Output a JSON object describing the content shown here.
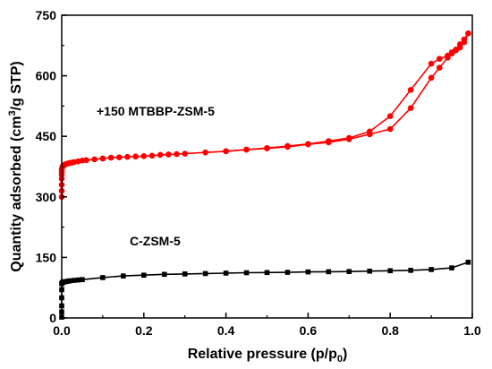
{
  "chart_data": {
    "type": "line",
    "xlabel": "Relative pressure (p/p",
    "xlabel_sub": "0",
    "xlabel_end": ")",
    "ylabel": "Quantity adsorbed (cm",
    "ylabel_sup": "3",
    "ylabel_end": "/g STP)",
    "xlim": [
      0,
      1.0
    ],
    "ylim": [
      0,
      750
    ],
    "xticks": [
      0.0,
      0.2,
      0.4,
      0.6,
      0.8,
      1.0
    ],
    "xtick_labels": [
      "0.0",
      "0.2",
      "0.4",
      "0.6",
      "0.8",
      "1.0"
    ],
    "yticks": [
      0,
      150,
      300,
      450,
      600,
      750
    ],
    "ytick_labels": [
      "0",
      "150",
      "300",
      "450",
      "600",
      "750"
    ],
    "grid": false,
    "annotations": [
      "+150 MTBBP-ZSM-5",
      "C-ZSM-5"
    ],
    "series": [
      {
        "color": "#ff0000",
        "marker": "circle",
        "branches": [
          {
            "x": [
              0.0,
              0.0,
              0.0,
              0.0,
              0.0,
              0.0,
              0.0,
              0.001,
              0.002,
              0.004,
              0.006,
              0.008,
              0.012,
              0.016,
              0.02,
              0.025,
              0.03,
              0.04,
              0.05,
              0.06,
              0.08,
              0.1,
              0.12,
              0.14,
              0.16,
              0.18,
              0.2,
              0.22,
              0.24,
              0.26,
              0.28,
              0.3,
              0.35,
              0.4,
              0.45,
              0.5,
              0.55,
              0.6,
              0.65,
              0.7,
              0.75,
              0.8,
              0.85,
              0.9,
              0.92,
              0.94,
              0.95,
              0.96,
              0.97,
              0.98,
              0.99
            ],
            "y": [
              300,
              315,
              330,
              345,
              355,
              362,
              368,
              372,
              375,
              377,
              379,
              380,
              382,
              383,
              384,
              385,
              386,
              388,
              390,
              391,
              393,
              395,
              397,
              398,
              399,
              400,
              401,
              402,
              404,
              405,
              406,
              407,
              410,
              413,
              417,
              420,
              424,
              430,
              435,
              443,
              455,
              468,
              520,
              595,
              620,
              645,
              655,
              663,
              670,
              683,
              705
            ]
          },
          {
            "x": [
              0.99,
              0.98,
              0.97,
              0.96,
              0.95,
              0.94,
              0.92,
              0.9,
              0.85,
              0.8,
              0.75,
              0.7,
              0.65,
              0.6,
              0.55,
              0.5,
              0.45,
              0.4
            ],
            "y": [
              705,
              690,
              678,
              665,
              658,
              650,
              642,
              630,
              565,
              500,
              462,
              446,
              438,
              431,
              426,
              421,
              417,
              413
            ]
          }
        ]
      },
      {
        "color": "#000000",
        "marker": "square",
        "branches": [
          {
            "x": [
              0.0,
              0.0,
              0.0,
              0.0,
              0.0,
              0.0,
              0.001,
              0.002,
              0.004,
              0.006,
              0.01,
              0.015,
              0.02,
              0.03,
              0.04,
              0.05,
              0.1,
              0.15,
              0.2,
              0.25,
              0.3,
              0.35,
              0.4,
              0.45,
              0.5,
              0.55,
              0.6,
              0.65,
              0.7,
              0.75,
              0.8,
              0.85,
              0.9,
              0.95,
              0.99
            ],
            "y": [
              2,
              15,
              30,
              50,
              70,
              85,
              87,
              88,
              89,
              89.5,
              90,
              91,
              92,
              93,
              94,
              95,
              100,
              104,
              106,
              108,
              109,
              110,
              111,
              112,
              112.5,
              113,
              114,
              114.5,
              115,
              116,
              117,
              118,
              120,
              124,
              138
            ]
          }
        ]
      }
    ]
  }
}
